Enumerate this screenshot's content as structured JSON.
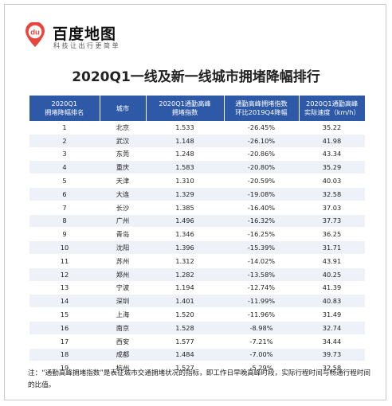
{
  "brand": {
    "logo_text": "du",
    "name": "百度地图",
    "slogan": "科技让出行更简单"
  },
  "title": "2020Q1一线及新一线城市拥堵降幅排行",
  "table": {
    "headers": [
      [
        "2020Q1",
        "拥堵降幅排名"
      ],
      [
        "城市"
      ],
      [
        "2020Q1通勤高峰",
        "拥堵指数"
      ],
      [
        "通勤高峰拥堵指数",
        "环比2019Q4降幅"
      ],
      [
        "2020Q1通勤高峰",
        "实际速度（km/h）"
      ]
    ],
    "rows": [
      [
        "1",
        "北京",
        "1.533",
        "-26.45%",
        "35.22"
      ],
      [
        "2",
        "武汉",
        "1.148",
        "-26.10%",
        "41.98"
      ],
      [
        "3",
        "东莞",
        "1.248",
        "-20.86%",
        "43.34"
      ],
      [
        "4",
        "重庆",
        "1.583",
        "-20.80%",
        "35.29"
      ],
      [
        "5",
        "天津",
        "1.310",
        "-20.59%",
        "40.03"
      ],
      [
        "6",
        "大连",
        "1.329",
        "-19.08%",
        "32.58"
      ],
      [
        "7",
        "长沙",
        "1.385",
        "-16.40%",
        "37.03"
      ],
      [
        "8",
        "广州",
        "1.496",
        "-16.32%",
        "37.73"
      ],
      [
        "9",
        "青岛",
        "1.346",
        "-16.25%",
        "36.25"
      ],
      [
        "10",
        "沈阳",
        "1.396",
        "-15.39%",
        "31.71"
      ],
      [
        "11",
        "苏州",
        "1.312",
        "-14.02%",
        "43.91"
      ],
      [
        "12",
        "郑州",
        "1.282",
        "-13.58%",
        "40.25"
      ],
      [
        "13",
        "宁波",
        "1.194",
        "-12.74%",
        "41.39"
      ],
      [
        "14",
        "深圳",
        "1.401",
        "-11.99%",
        "40.83"
      ],
      [
        "15",
        "上海",
        "1.520",
        "-11.96%",
        "31.49"
      ],
      [
        "16",
        "南京",
        "1.528",
        "-8.98%",
        "32.74"
      ],
      [
        "17",
        "西安",
        "1.577",
        "-7.21%",
        "34.44"
      ],
      [
        "18",
        "成都",
        "1.484",
        "-7.00%",
        "39.73"
      ],
      [
        "19",
        "杭州",
        "1.527",
        "-5.29%",
        "32.58"
      ]
    ]
  },
  "footnote": "注：“通勤高峰拥堵指数”是表征城市交通拥堵状况的指标，即工作日早晚高峰时段，实际行程时间与畅通行程时间的比值。",
  "colors": {
    "header_bg": "#2e59a7",
    "change_text": "#2aa12e",
    "stripe": "#eef1f7",
    "logo_red": "#e8453c"
  }
}
